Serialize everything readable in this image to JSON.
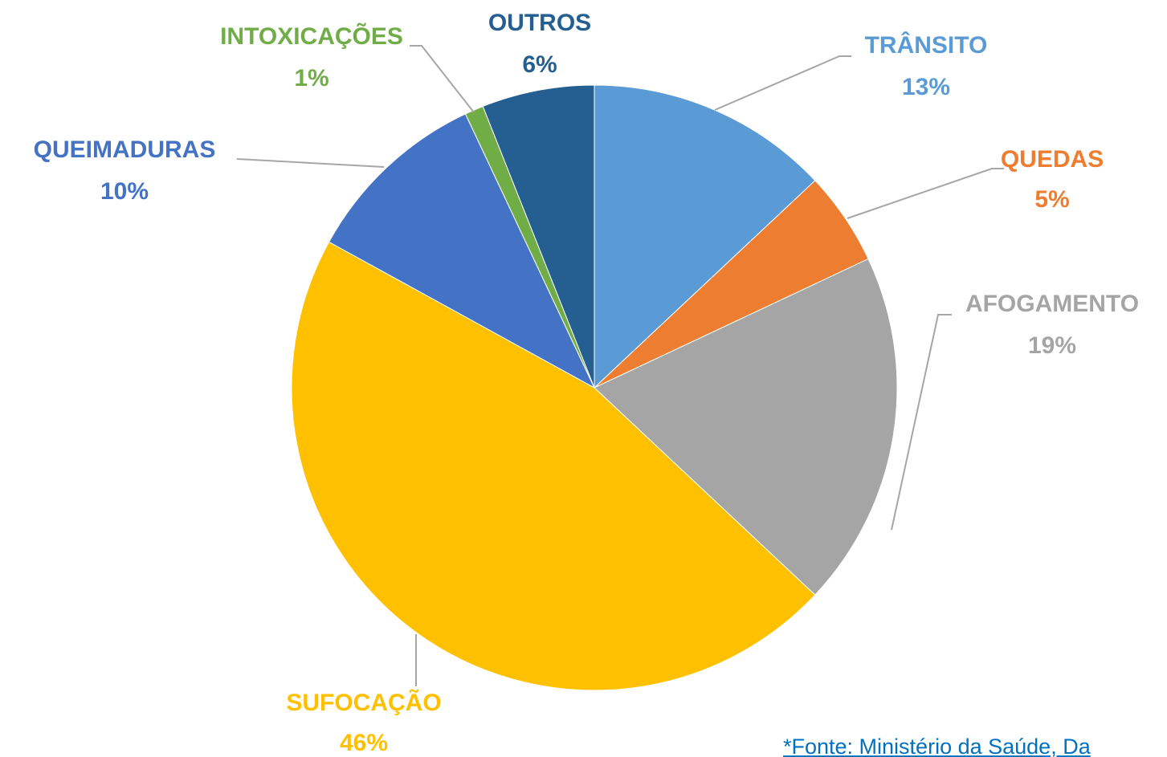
{
  "chart_data": {
    "type": "pie",
    "categories": [
      "TRÂNSITO",
      "QUEDAS",
      "AFOGAMENTO",
      "SUFOCAÇÃO",
      "QUEIMADURAS",
      "INTOXICAÇÕES",
      "OUTROS"
    ],
    "values": [
      13,
      5,
      19,
      46,
      10,
      1,
      6
    ],
    "value_labels": [
      "13%",
      "5%",
      "19%",
      "46%",
      "10%",
      "1%",
      "6%"
    ],
    "colors": [
      "#5b9bd5",
      "#ed7d31",
      "#a5a5a5",
      "#ffc000",
      "#4472c4",
      "#70ad47",
      "#255e91"
    ],
    "footnote": "*Fonte: Ministério da Saúde, Da"
  }
}
